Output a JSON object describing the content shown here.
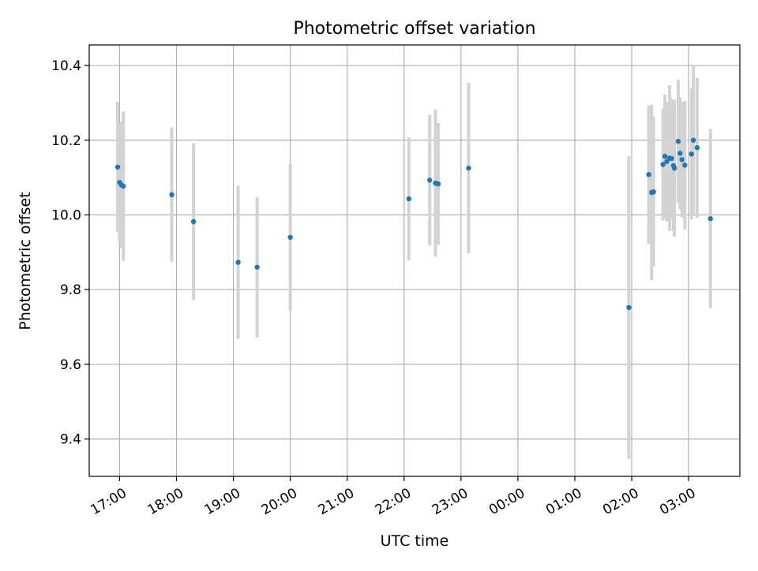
{
  "chart_data": {
    "type": "scatter",
    "title": "Photometric offset variation",
    "xlabel": "UTC time",
    "ylabel": "Photometric offset",
    "x_unit": "UTC time of day (night spans midnight, axis runs 16:28 to 03:54)",
    "xlim": [
      "16:28",
      "03:54"
    ],
    "ylim": [
      9.3,
      10.455
    ],
    "x_ticks": [
      "17:00",
      "18:00",
      "19:00",
      "20:00",
      "21:00",
      "22:00",
      "23:00",
      "00:00",
      "01:00",
      "02:00",
      "03:00"
    ],
    "y_ticks": [
      9.4,
      9.6,
      9.8,
      10.0,
      10.2,
      10.4
    ],
    "grid": true,
    "series": [
      {
        "marker_color": "#1f77b4",
        "errorbar_color": "#d3d3d3",
        "points": [
          {
            "x": "16:58",
            "y": 10.128,
            "err": 0.175
          },
          {
            "x": "17:00",
            "y": 10.087,
            "err": 0.16
          },
          {
            "x": "17:02",
            "y": 10.08,
            "err": 0.17
          },
          {
            "x": "17:04",
            "y": 10.077,
            "err": 0.2
          },
          {
            "x": "17:55",
            "y": 10.054,
            "err": 0.18
          },
          {
            "x": "18:18",
            "y": 9.982,
            "err": 0.21
          },
          {
            "x": "19:05",
            "y": 9.873,
            "err": 0.205
          },
          {
            "x": "19:25",
            "y": 9.86,
            "err": 0.188
          },
          {
            "x": "20:00",
            "y": 9.94,
            "err": 0.197
          },
          {
            "x": "22:05",
            "y": 10.043,
            "err": 0.165
          },
          {
            "x": "22:27",
            "y": 10.093,
            "err": 0.175
          },
          {
            "x": "22:33",
            "y": 10.085,
            "err": 0.197
          },
          {
            "x": "22:36",
            "y": 10.083,
            "err": 0.163
          },
          {
            "x": "23:08",
            "y": 10.125,
            "err": 0.228
          },
          {
            "x": "01:57",
            "y": 9.752,
            "err": 0.405
          },
          {
            "x": "02:18",
            "y": 10.108,
            "err": 0.185
          },
          {
            "x": "02:21",
            "y": 10.06,
            "err": 0.235
          },
          {
            "x": "02:23",
            "y": 10.062,
            "err": 0.2
          },
          {
            "x": "02:33",
            "y": 10.135,
            "err": 0.15
          },
          {
            "x": "02:35",
            "y": 10.157,
            "err": 0.165
          },
          {
            "x": "02:37",
            "y": 10.143,
            "err": 0.16
          },
          {
            "x": "02:40",
            "y": 10.152,
            "err": 0.195
          },
          {
            "x": "02:42",
            "y": 10.151,
            "err": 0.16
          },
          {
            "x": "02:44",
            "y": 10.132,
            "err": 0.175
          },
          {
            "x": "02:45",
            "y": 10.125,
            "err": 0.183
          },
          {
            "x": "02:49",
            "y": 10.197,
            "err": 0.165
          },
          {
            "x": "02:51",
            "y": 10.165,
            "err": 0.15
          },
          {
            "x": "02:53",
            "y": 10.148,
            "err": 0.155
          },
          {
            "x": "02:56",
            "y": 10.133,
            "err": 0.172
          },
          {
            "x": "03:03",
            "y": 10.163,
            "err": 0.175
          },
          {
            "x": "03:05",
            "y": 10.2,
            "err": 0.2
          },
          {
            "x": "03:09",
            "y": 10.18,
            "err": 0.187
          },
          {
            "x": "03:23",
            "y": 9.99,
            "err": 0.24
          }
        ]
      }
    ]
  }
}
